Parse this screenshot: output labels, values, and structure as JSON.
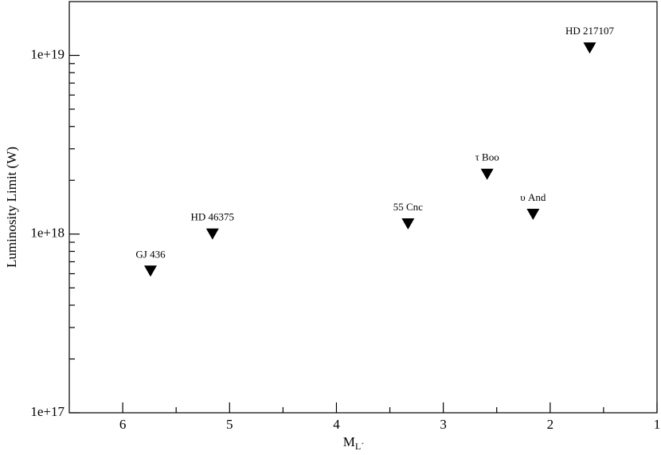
{
  "chart_data": {
    "type": "scatter",
    "xlabel": "M",
    "xlabel_sub": "L´",
    "ylabel": "Luminosity Limit (W)",
    "xlim": [
      6.5,
      1
    ],
    "xticks": [
      6,
      5,
      4,
      3,
      2,
      1
    ],
    "xminorticks": [
      5.5,
      4.5,
      3.5,
      2.5,
      1.5
    ],
    "ylim": [
      1e+17,
      2e+19
    ],
    "yscale": "log",
    "yticks": [
      {
        "value": 1e+17,
        "label": "1e+17"
      },
      {
        "value": 1e+18,
        "label": "1e+18"
      },
      {
        "value": 1e+19,
        "label": "1e+19"
      }
    ],
    "yminorticks": [
      2e+17,
      3e+17,
      4e+17,
      5e+17,
      6e+17,
      7e+17,
      8e+17,
      9e+17,
      2e+18,
      3e+18,
      4e+18,
      5e+18,
      6e+18,
      7e+18,
      8e+18,
      9e+18
    ],
    "series": [
      {
        "color": "#000000",
        "marker": "triangle-down",
        "labels": [
          "GJ 436",
          "HD 46375",
          "55 Cnc",
          "τ Boo",
          "υ And",
          "HD 217107"
        ],
        "x": [
          5.74,
          5.16,
          3.33,
          2.59,
          2.16,
          1.63
        ],
        "values": [
          6.2e+17,
          1e+18,
          1.14e+18,
          2.16e+18,
          1.29e+18,
          1.1e+19
        ]
      }
    ]
  }
}
